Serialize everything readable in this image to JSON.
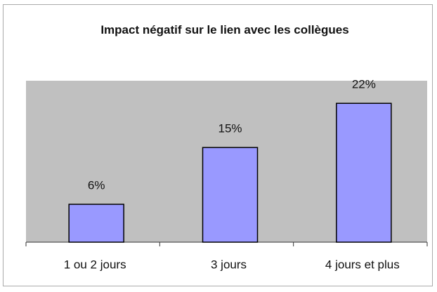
{
  "chart_data": {
    "type": "bar",
    "title": "Impact négatif sur le lien avec les collègues",
    "categories": [
      "1 ou 2 jours",
      "3 jours",
      "4 jours et plus"
    ],
    "values": [
      6,
      15,
      22
    ],
    "value_labels": [
      "6%",
      "15%",
      "22%"
    ],
    "color": "#9999ff",
    "plot_background": "#c0c0c0"
  }
}
